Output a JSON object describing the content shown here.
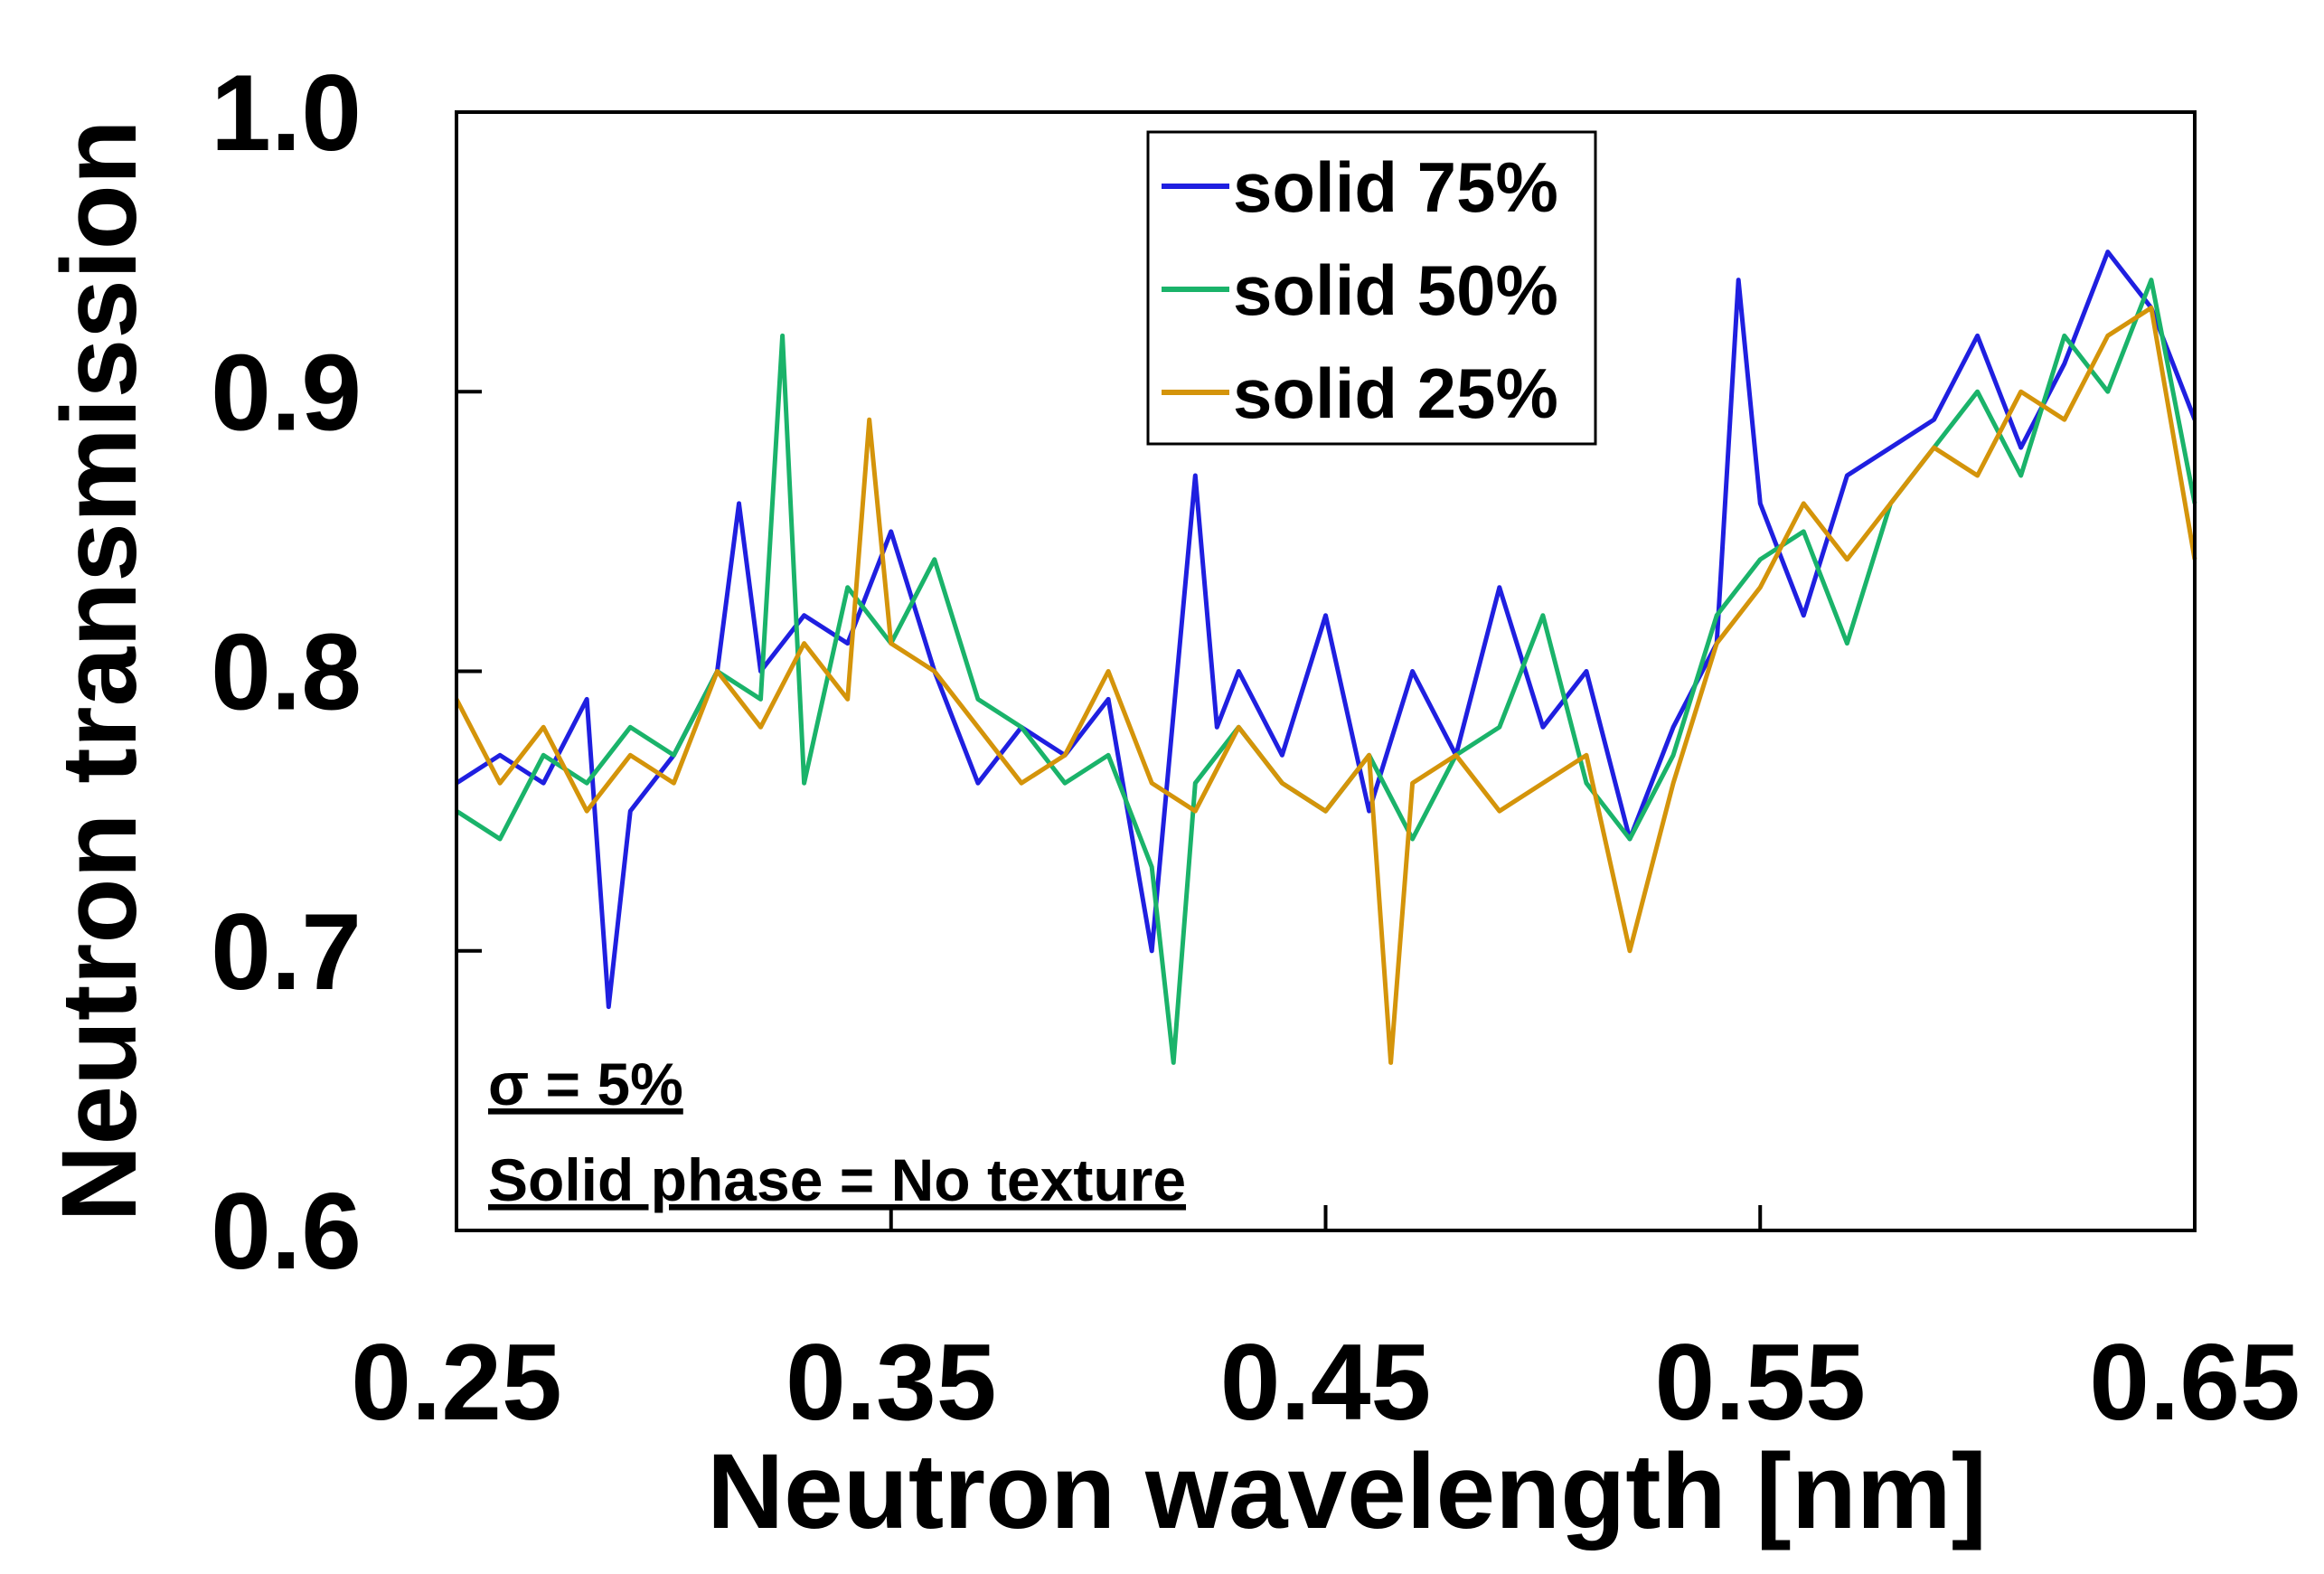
{
  "chart_data": {
    "type": "line",
    "title": "",
    "xlabel": "Neutron wavelength [nm]",
    "ylabel": "Neutron transmission",
    "xlim": [
      0.25,
      0.65
    ],
    "ylim": [
      0.6,
      1.0
    ],
    "xticks": [
      "0.25",
      "0.35",
      "0.45",
      "0.55",
      "0.65"
    ],
    "yticks": [
      "0.6",
      "0.7",
      "0.8",
      "0.9",
      "1.0"
    ],
    "legend_position": "top-center",
    "annotations": [
      "σ = 5%",
      "Solid phase = No texture"
    ],
    "series": [
      {
        "name": "solid 75%",
        "color": "#1f1fe0",
        "x": [
          0.25,
          0.26,
          0.27,
          0.28,
          0.285,
          0.29,
          0.3,
          0.31,
          0.315,
          0.32,
          0.33,
          0.34,
          0.35,
          0.36,
          0.37,
          0.38,
          0.39,
          0.4,
          0.41,
          0.42,
          0.425,
          0.43,
          0.44,
          0.45,
          0.46,
          0.47,
          0.48,
          0.49,
          0.5,
          0.51,
          0.52,
          0.53,
          0.54,
          0.545,
          0.55,
          0.56,
          0.57,
          0.58,
          0.59,
          0.6,
          0.61,
          0.62,
          0.63,
          0.64,
          0.65
        ],
        "y": [
          0.76,
          0.77,
          0.76,
          0.79,
          0.68,
          0.75,
          0.77,
          0.8,
          0.86,
          0.8,
          0.82,
          0.81,
          0.85,
          0.8,
          0.76,
          0.78,
          0.77,
          0.79,
          0.7,
          0.87,
          0.78,
          0.8,
          0.77,
          0.82,
          0.75,
          0.8,
          0.77,
          0.83,
          0.78,
          0.8,
          0.74,
          0.78,
          0.81,
          0.94,
          0.86,
          0.82,
          0.87,
          0.88,
          0.89,
          0.92,
          0.88,
          0.91,
          0.95,
          0.93,
          0.89
        ]
      },
      {
        "name": "solid 50%",
        "color": "#1ab36a",
        "x": [
          0.25,
          0.26,
          0.27,
          0.28,
          0.29,
          0.3,
          0.31,
          0.32,
          0.325,
          0.33,
          0.34,
          0.35,
          0.36,
          0.37,
          0.38,
          0.39,
          0.4,
          0.41,
          0.415,
          0.42,
          0.43,
          0.44,
          0.45,
          0.46,
          0.47,
          0.48,
          0.49,
          0.5,
          0.51,
          0.52,
          0.53,
          0.54,
          0.55,
          0.56,
          0.57,
          0.58,
          0.59,
          0.6,
          0.61,
          0.62,
          0.63,
          0.64,
          0.65
        ],
        "y": [
          0.75,
          0.74,
          0.77,
          0.76,
          0.78,
          0.77,
          0.8,
          0.79,
          0.92,
          0.76,
          0.83,
          0.81,
          0.84,
          0.79,
          0.78,
          0.76,
          0.77,
          0.73,
          0.66,
          0.76,
          0.78,
          0.76,
          0.75,
          0.77,
          0.74,
          0.77,
          0.78,
          0.82,
          0.76,
          0.74,
          0.77,
          0.82,
          0.84,
          0.85,
          0.81,
          0.86,
          0.88,
          0.9,
          0.87,
          0.92,
          0.9,
          0.94,
          0.86
        ]
      },
      {
        "name": "solid 25%",
        "color": "#d4940a",
        "x": [
          0.25,
          0.26,
          0.27,
          0.28,
          0.29,
          0.3,
          0.31,
          0.32,
          0.33,
          0.34,
          0.345,
          0.35,
          0.36,
          0.37,
          0.38,
          0.39,
          0.4,
          0.41,
          0.42,
          0.43,
          0.44,
          0.45,
          0.46,
          0.465,
          0.47,
          0.48,
          0.49,
          0.5,
          0.51,
          0.52,
          0.53,
          0.54,
          0.55,
          0.56,
          0.57,
          0.58,
          0.59,
          0.6,
          0.61,
          0.62,
          0.63,
          0.64,
          0.65
        ],
        "y": [
          0.79,
          0.76,
          0.78,
          0.75,
          0.77,
          0.76,
          0.8,
          0.78,
          0.81,
          0.79,
          0.89,
          0.81,
          0.8,
          0.78,
          0.76,
          0.77,
          0.8,
          0.76,
          0.75,
          0.78,
          0.76,
          0.75,
          0.77,
          0.66,
          0.76,
          0.77,
          0.75,
          0.76,
          0.77,
          0.7,
          0.76,
          0.81,
          0.83,
          0.86,
          0.84,
          0.86,
          0.88,
          0.87,
          0.9,
          0.89,
          0.92,
          0.93,
          0.84
        ]
      }
    ]
  }
}
